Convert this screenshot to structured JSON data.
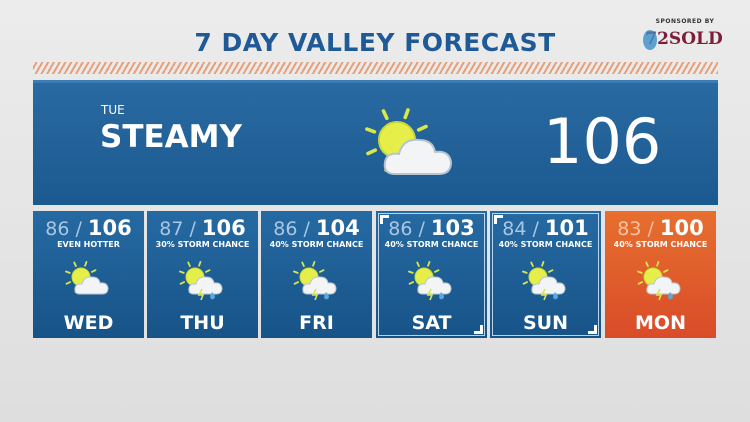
{
  "title": "7 DAY VALLEY FORECAST",
  "sponsor": {
    "label": "SPONSORED BY",
    "logo_text": "72SOLD"
  },
  "today": {
    "day": "TUE",
    "condition": "STEAMY",
    "temp": "106",
    "icon": "partly-cloudy-icon"
  },
  "colors": {
    "card": "#1e5f96",
    "highlight": "#e0582a",
    "title": "#1f5a96"
  },
  "days": [
    {
      "day": "WED",
      "low": "86",
      "high": "106",
      "note": "EVEN HOTTER",
      "icon": "partly-cloudy"
    },
    {
      "day": "THU",
      "low": "87",
      "high": "106",
      "note": "30% STORM CHANCE",
      "icon": "partly-cloudy-storm"
    },
    {
      "day": "FRI",
      "low": "86",
      "high": "104",
      "note": "40% STORM CHANCE",
      "icon": "partly-cloudy-storm"
    },
    {
      "day": "SAT",
      "low": "86",
      "high": "103",
      "note": "40% STORM CHANCE",
      "icon": "partly-cloudy-storm"
    },
    {
      "day": "SUN",
      "low": "84",
      "high": "101",
      "note": "40% STORM CHANCE",
      "icon": "partly-cloudy-storm"
    },
    {
      "day": "MON",
      "low": "83",
      "high": "100",
      "note": "40% STORM CHANCE",
      "icon": "partly-cloudy-storm"
    }
  ]
}
